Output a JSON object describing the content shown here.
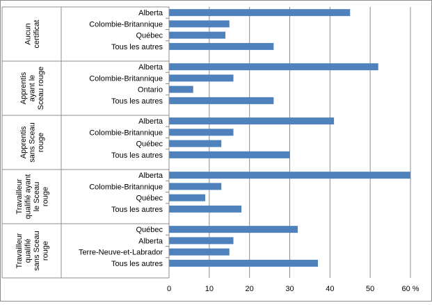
{
  "chart_data": {
    "type": "bar",
    "orientation": "horizontal",
    "xlim": [
      0,
      60
    ],
    "x_ticks": [
      "0",
      "10",
      "20",
      "30",
      "40",
      "50",
      "60 %"
    ],
    "grid": true,
    "bar_color": "#4F81BD",
    "groups": [
      {
        "label_lines": [
          "Aucun",
          "certificat"
        ],
        "categories": [
          "Alberta",
          "Colombie-Britannique",
          "Québec",
          "Tous les autres"
        ],
        "values": [
          45,
          15,
          14,
          26
        ]
      },
      {
        "label_lines": [
          "Apprentis",
          "ayant le",
          "Sceau rouge"
        ],
        "categories": [
          "Alberta",
          "Colombie-Britannique",
          "Ontario",
          "Tous les autres"
        ],
        "values": [
          52,
          16,
          6,
          26
        ]
      },
      {
        "label_lines": [
          "Apprentis",
          "sans Sceau",
          "rouge"
        ],
        "categories": [
          "Alberta",
          "Colombie-Britannique",
          "Québec",
          "Tous les autres"
        ],
        "values": [
          41,
          16,
          13,
          30
        ]
      },
      {
        "label_lines": [
          "Travailleur",
          "qualifié ayant",
          "le Sceau",
          "rouge"
        ],
        "categories": [
          "Alberta",
          "Colombie-Britannique",
          "Québec",
          "Tous les autres"
        ],
        "values": [
          60,
          13,
          9,
          18
        ]
      },
      {
        "label_lines": [
          "Travailleur",
          "qualifié",
          "sans Sceau",
          "rouge"
        ],
        "categories": [
          "Québec",
          "Alberta",
          "Terre-Neuve-et-Labrador",
          "Tous les autres"
        ],
        "values": [
          32,
          16,
          15,
          37
        ]
      }
    ]
  }
}
